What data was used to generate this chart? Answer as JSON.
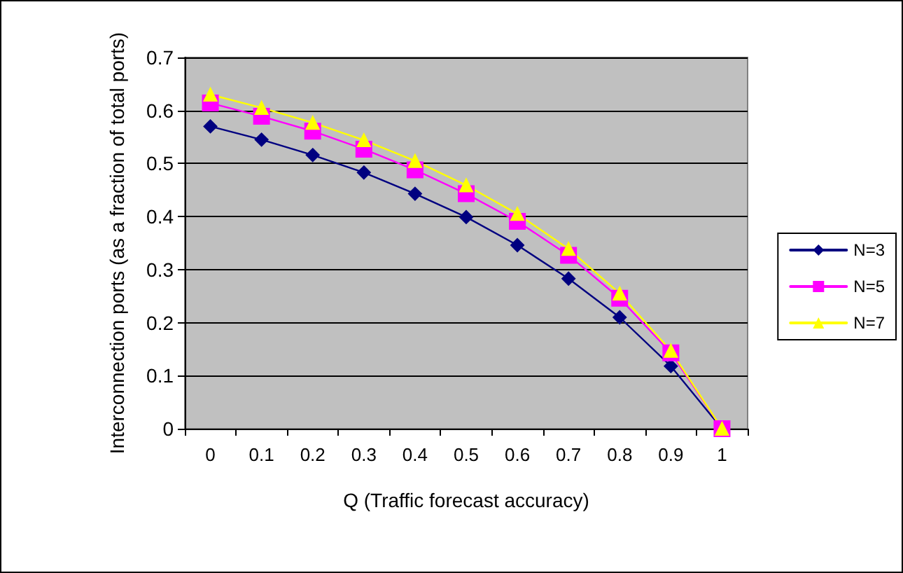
{
  "chart_data": {
    "type": "line",
    "xlabel": "Q (Traffic forecast accuracy)",
    "ylabel": "Interconnection ports (as a fraction of total ports)",
    "categories": [
      "0",
      "0.1",
      "0.2",
      "0.3",
      "0.4",
      "0.5",
      "0.6",
      "0.7",
      "0.8",
      "0.9",
      "1"
    ],
    "series": [
      {
        "name": "N=3",
        "color": "#000080",
        "marker": "diamond",
        "values": [
          0.57,
          0.545,
          0.516,
          0.483,
          0.443,
          0.399,
          0.346,
          0.283,
          0.21,
          0.118,
          0
        ]
      },
      {
        "name": "N=5",
        "color": "#ff00ff",
        "marker": "square",
        "values": [
          0.614,
          0.589,
          0.561,
          0.527,
          0.488,
          0.443,
          0.391,
          0.327,
          0.246,
          0.143,
          0
        ]
      },
      {
        "name": "N=7",
        "color": "#ffff00",
        "marker": "triangle",
        "values": [
          0.63,
          0.605,
          0.577,
          0.544,
          0.505,
          0.459,
          0.405,
          0.339,
          0.255,
          0.147,
          0
        ]
      }
    ],
    "ylim": [
      0,
      0.7
    ],
    "yticks": [
      0,
      0.1,
      0.2,
      0.3,
      0.4,
      0.5,
      0.6,
      0.7
    ],
    "grid": "y",
    "legend": "right",
    "line_style": "solid"
  }
}
